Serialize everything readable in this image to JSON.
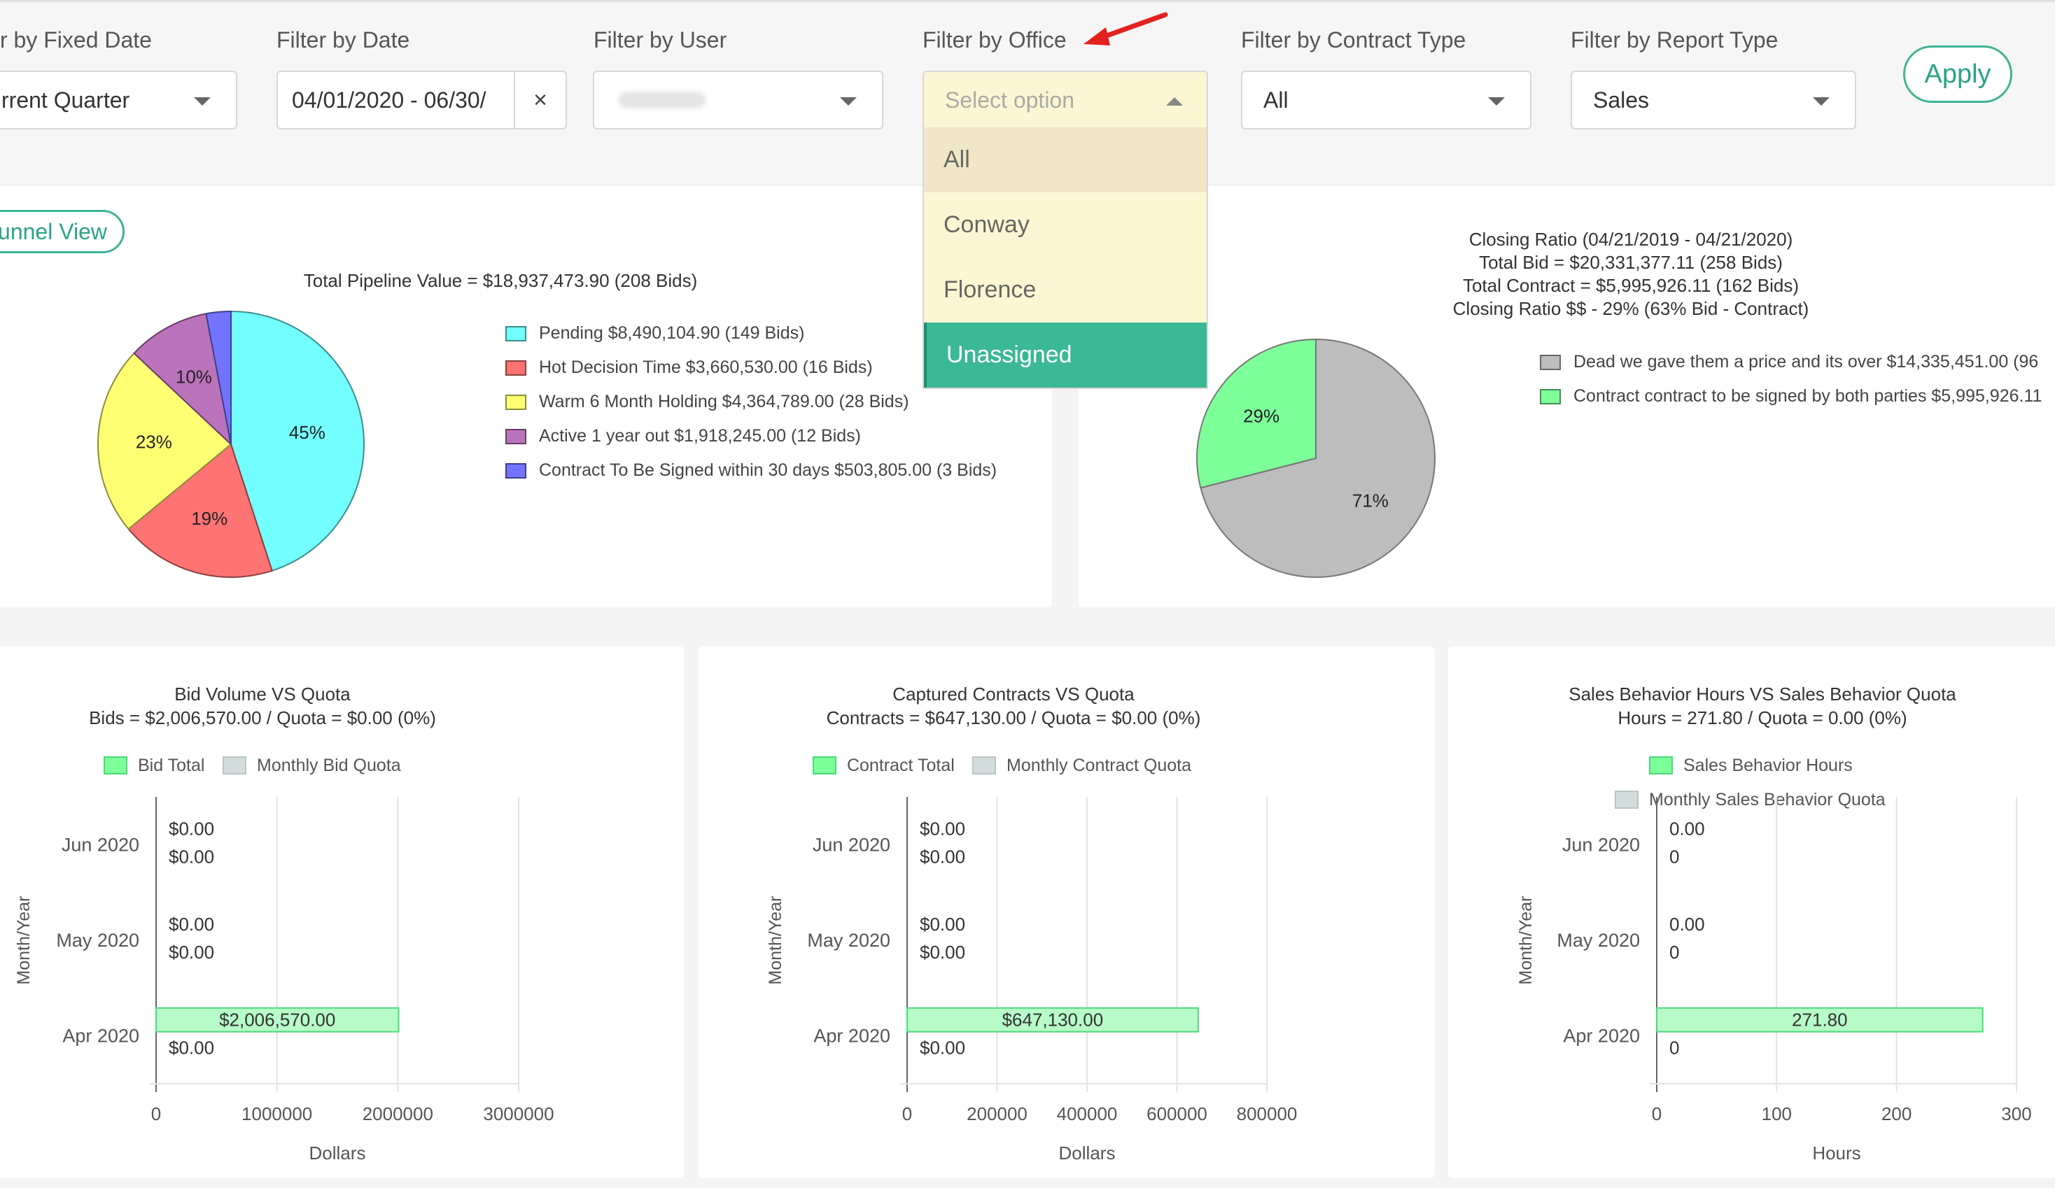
{
  "filters": {
    "fixed_date": {
      "label": "r by Fixed Date",
      "value": "rrent Quarter"
    },
    "date": {
      "label": "Filter by Date",
      "value": "04/01/2020 - 06/30/",
      "clear": "×"
    },
    "user": {
      "label": "Filter by User"
    },
    "office": {
      "label": "Filter by Office",
      "placeholder": "Select option",
      "options": [
        "All",
        "Conway",
        "Florence",
        "Unassigned"
      ],
      "selected": "Unassigned"
    },
    "contract_type": {
      "label": "Filter by Contract Type",
      "value": "All"
    },
    "report_type": {
      "label": "Filter by Report Type",
      "value": "Sales"
    },
    "apply_label": "Apply"
  },
  "funnel_view_label": "unnel View",
  "colors": {
    "accent": "#3cb494",
    "pending": "#73ffff",
    "hot": "#ff7373",
    "warm": "#ffff73",
    "active": "#bb73bb",
    "contract": "#7373ff",
    "dead": "#bdbdbd",
    "green": "#7dff9a"
  },
  "chart_data": [
    {
      "type": "pie",
      "title": "Total Pipeline Value = $18,937,473.90 (208 Bids)",
      "slices": [
        {
          "name": "Pending $8,490,104.90 (149 Bids)",
          "value": 45,
          "label": "45%"
        },
        {
          "name": "Hot Decision Time  $3,660,530.00 (16 Bids)",
          "value": 19,
          "label": "19%"
        },
        {
          "name": "Warm 6 Month Holding $4,364,789.00 (28 Bids)",
          "value": 23,
          "label": "23%"
        },
        {
          "name": "Active 1 year out $1,918,245.00 (12 Bids)",
          "value": 10,
          "label": "10%"
        },
        {
          "name": "Contract To Be Signed within 30 days $503,805.00 (3 Bids)",
          "value": 3,
          "label": ""
        }
      ]
    },
    {
      "type": "pie",
      "title": [
        "Closing Ratio (04/21/2019 - 04/21/2020)",
        "Total Bid = $20,331,377.11 (258 Bids)",
        "Total Contract = $5,995,926.11 (162 Bids)",
        "Closing Ratio $$ - 29% (63% Bid - Contract)"
      ],
      "slices": [
        {
          "name": "Dead we gave them a price and its over $14,335,451.00 (96",
          "value": 71,
          "label": "71%"
        },
        {
          "name": "Contract contract to be signed by both parties $5,995,926.11",
          "value": 29,
          "label": "29%"
        }
      ]
    },
    {
      "type": "bar",
      "title": [
        "Bid Volume VS Quota",
        "Bids = $2,006,570.00 / Quota = $0.00 (0%)"
      ],
      "categories": [
        "Jun 2020",
        "May 2020",
        "Apr 2020"
      ],
      "series": [
        {
          "name": "Bid Total",
          "values": [
            0,
            0,
            2006570
          ],
          "labels": [
            "$0.00",
            "$0.00",
            "$2,006,570.00"
          ]
        },
        {
          "name": "Monthly Bid Quota",
          "values": [
            0,
            0,
            0
          ],
          "labels": [
            "$0.00",
            "$0.00",
            "$0.00"
          ]
        }
      ],
      "xlim": [
        0,
        3000000
      ],
      "ticks": [
        "0",
        "1000000",
        "2000000",
        "3000000"
      ],
      "xlabel": "Dollars",
      "ylabel": "Month/Year"
    },
    {
      "type": "bar",
      "title": [
        "Captured Contracts VS Quota",
        "Contracts = $647,130.00 / Quota = $0.00 (0%)"
      ],
      "categories": [
        "Jun 2020",
        "May 2020",
        "Apr 2020"
      ],
      "series": [
        {
          "name": "Contract Total",
          "values": [
            0,
            0,
            647130
          ],
          "labels": [
            "$0.00",
            "$0.00",
            "$647,130.00"
          ]
        },
        {
          "name": "Monthly Contract Quota",
          "values": [
            0,
            0,
            0
          ],
          "labels": [
            "$0.00",
            "$0.00",
            "$0.00"
          ]
        }
      ],
      "xlim": [
        0,
        800000
      ],
      "ticks": [
        "0",
        "200000",
        "400000",
        "600000",
        "800000"
      ],
      "xlabel": "Dollars",
      "ylabel": "Month/Year"
    },
    {
      "type": "bar",
      "title": [
        "Sales Behavior Hours VS Sales Behavior Quota",
        "Hours = 271.80 / Quota = 0.00 (0%)"
      ],
      "categories": [
        "Jun 2020",
        "May 2020",
        "Apr 2020"
      ],
      "series": [
        {
          "name": "Sales Behavior Hours",
          "values": [
            0,
            0,
            271.8
          ],
          "labels": [
            "0.00",
            "0.00",
            "271.80"
          ]
        },
        {
          "name": "Monthly Sales Behavior Quota",
          "values": [
            0,
            0,
            0
          ],
          "labels": [
            "0",
            "0",
            "0"
          ]
        }
      ],
      "xlim": [
        0,
        300
      ],
      "ticks": [
        "0",
        "100",
        "200",
        "300"
      ],
      "xlabel": "Hours",
      "ylabel": "Month/Year"
    }
  ]
}
